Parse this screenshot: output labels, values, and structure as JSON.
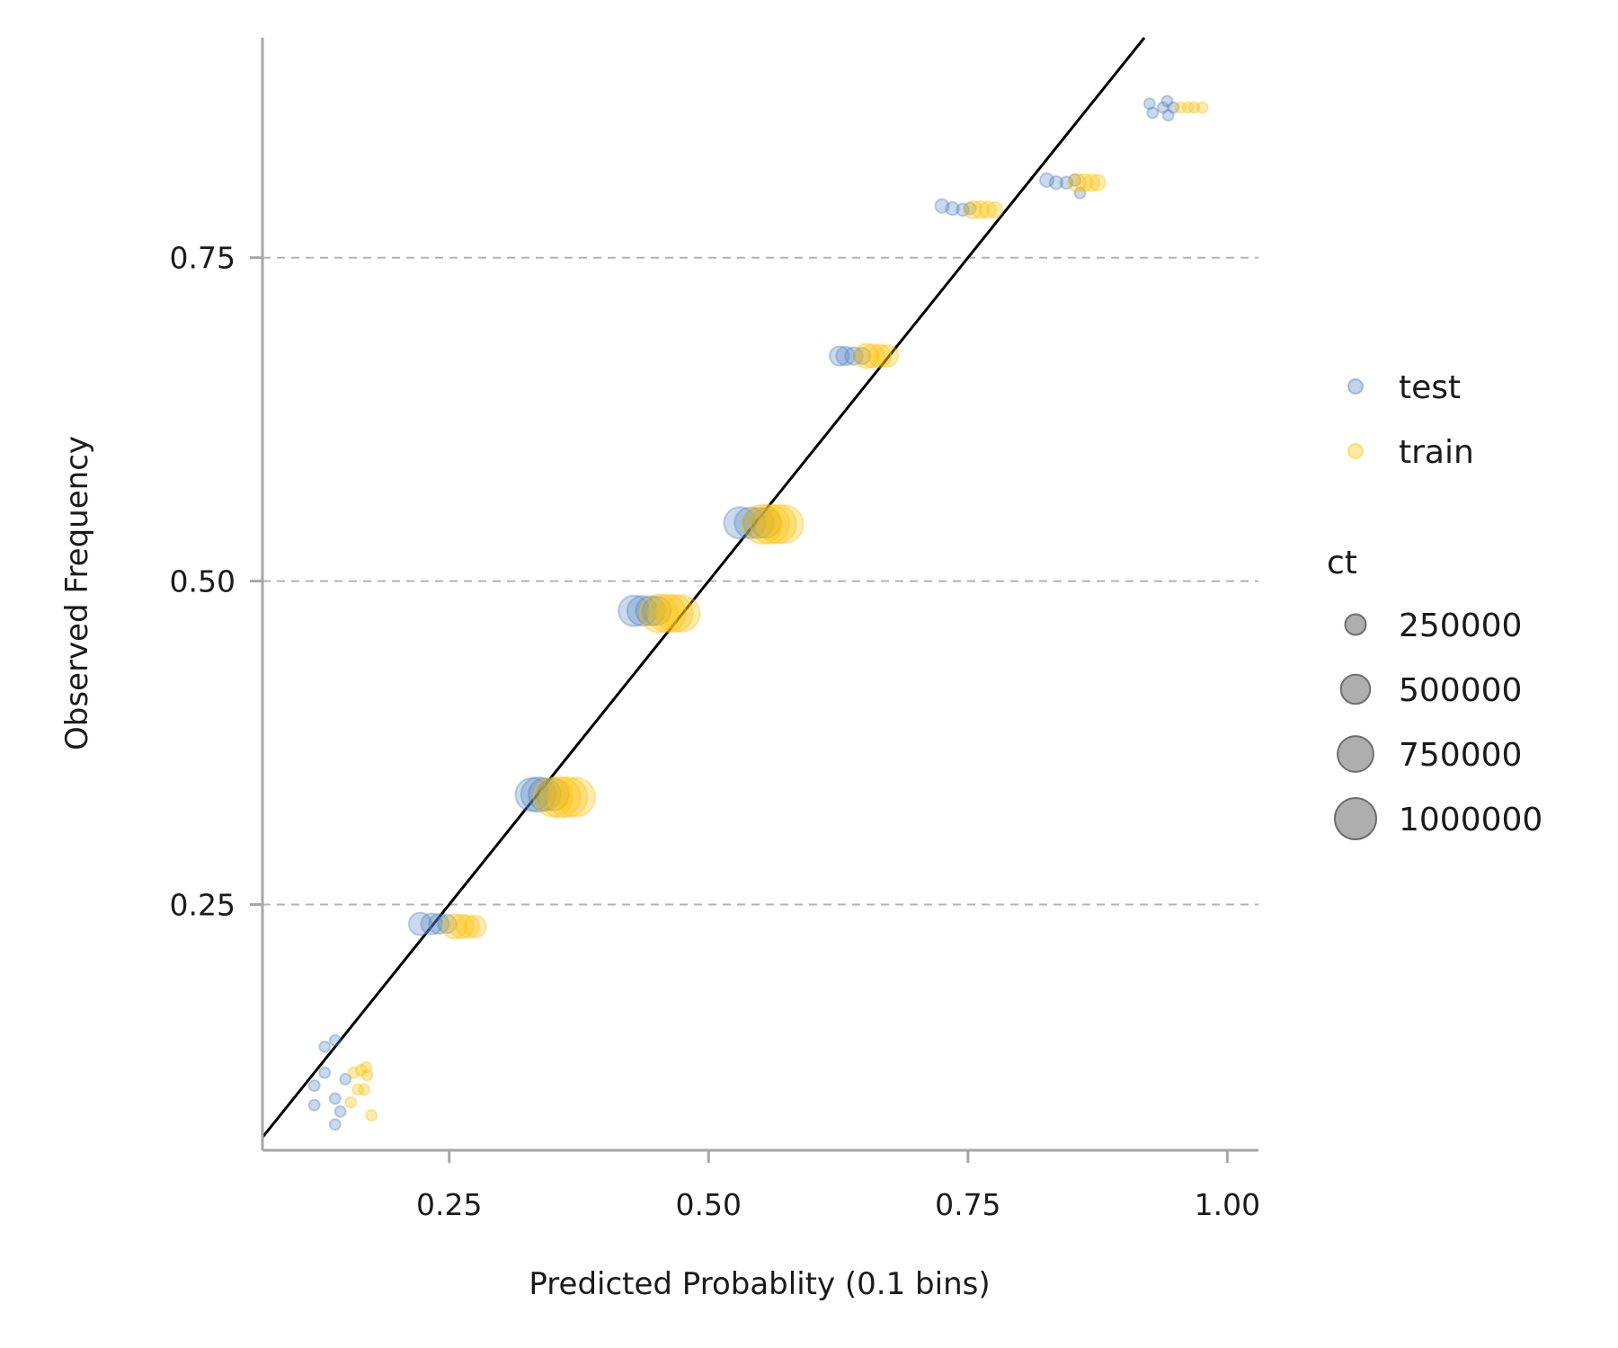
{
  "chart_data": {
    "type": "scatter",
    "xlabel": "Predicted Probablity (0.1 bins)",
    "ylabel": "Observed Frequency",
    "xlim": [
      0.07,
      1.03
    ],
    "ylim": [
      0.06,
      0.92
    ],
    "x_ticks": [
      {
        "value": 0.25,
        "label": "0.25"
      },
      {
        "value": 0.5,
        "label": "0.50"
      },
      {
        "value": 0.75,
        "label": "0.75"
      },
      {
        "value": 1.0,
        "label": "1.00"
      }
    ],
    "y_ticks": [
      {
        "value": 0.25,
        "label": "0.25"
      },
      {
        "value": 0.5,
        "label": "0.50"
      },
      {
        "value": 0.75,
        "label": "0.75"
      }
    ],
    "grid": "horizontal dashed",
    "reference_line": {
      "from": [
        0,
        0
      ],
      "to": [
        1,
        1
      ]
    },
    "series": [
      {
        "name": "test",
        "color": "#4f81bd",
        "points": [
          {
            "x": 0.13,
            "y": 0.14,
            "ct": 2000
          },
          {
            "x": 0.12,
            "y": 0.11,
            "ct": 1500
          },
          {
            "x": 0.13,
            "y": 0.12,
            "ct": 2500
          },
          {
            "x": 0.14,
            "y": 0.145,
            "ct": 1500
          },
          {
            "x": 0.12,
            "y": 0.095,
            "ct": 2000
          },
          {
            "x": 0.15,
            "y": 0.115,
            "ct": 1800
          },
          {
            "x": 0.14,
            "y": 0.1,
            "ct": 2200
          },
          {
            "x": 0.145,
            "y": 0.09,
            "ct": 1500
          },
          {
            "x": 0.14,
            "y": 0.08,
            "ct": 1500
          },
          {
            "x": 0.222,
            "y": 0.235,
            "ct": 300000
          },
          {
            "x": 0.233,
            "y": 0.235,
            "ct": 260000
          },
          {
            "x": 0.24,
            "y": 0.235,
            "ct": 230000
          },
          {
            "x": 0.248,
            "y": 0.235,
            "ct": 200000
          },
          {
            "x": 0.33,
            "y": 0.335,
            "ct": 650000
          },
          {
            "x": 0.336,
            "y": 0.335,
            "ct": 700000
          },
          {
            "x": 0.342,
            "y": 0.335,
            "ct": 620000
          },
          {
            "x": 0.35,
            "y": 0.335,
            "ct": 600000
          },
          {
            "x": 0.428,
            "y": 0.477,
            "ct": 550000
          },
          {
            "x": 0.436,
            "y": 0.477,
            "ct": 520000
          },
          {
            "x": 0.444,
            "y": 0.477,
            "ct": 500000
          },
          {
            "x": 0.45,
            "y": 0.477,
            "ct": 480000
          },
          {
            "x": 0.53,
            "y": 0.545,
            "ct": 580000
          },
          {
            "x": 0.54,
            "y": 0.545,
            "ct": 560000
          },
          {
            "x": 0.548,
            "y": 0.545,
            "ct": 540000
          },
          {
            "x": 0.555,
            "y": 0.545,
            "ct": 520000
          },
          {
            "x": 0.626,
            "y": 0.674,
            "ct": 220000
          },
          {
            "x": 0.632,
            "y": 0.674,
            "ct": 200000
          },
          {
            "x": 0.64,
            "y": 0.674,
            "ct": 180000
          },
          {
            "x": 0.648,
            "y": 0.674,
            "ct": 160000
          },
          {
            "x": 0.725,
            "y": 0.79,
            "ct": 110000
          },
          {
            "x": 0.735,
            "y": 0.788,
            "ct": 100000
          },
          {
            "x": 0.745,
            "y": 0.787,
            "ct": 90000
          },
          {
            "x": 0.752,
            "y": 0.788,
            "ct": 80000
          },
          {
            "x": 0.826,
            "y": 0.81,
            "ct": 110000
          },
          {
            "x": 0.835,
            "y": 0.808,
            "ct": 100000
          },
          {
            "x": 0.845,
            "y": 0.808,
            "ct": 90000
          },
          {
            "x": 0.853,
            "y": 0.81,
            "ct": 80000
          },
          {
            "x": 0.858,
            "y": 0.8,
            "ct": 70000
          },
          {
            "x": 0.925,
            "y": 0.869,
            "ct": 30000
          },
          {
            "x": 0.928,
            "y": 0.862,
            "ct": 25000
          },
          {
            "x": 0.938,
            "y": 0.866,
            "ct": 35000
          },
          {
            "x": 0.942,
            "y": 0.871,
            "ct": 28000
          },
          {
            "x": 0.943,
            "y": 0.86,
            "ct": 25000
          },
          {
            "x": 0.948,
            "y": 0.866,
            "ct": 40000
          }
        ]
      },
      {
        "name": "train",
        "color": "#ffc000",
        "points": [
          {
            "x": 0.158,
            "y": 0.12,
            "ct": 3000
          },
          {
            "x": 0.165,
            "y": 0.122,
            "ct": 2500
          },
          {
            "x": 0.171,
            "y": 0.118,
            "ct": 2000
          },
          {
            "x": 0.162,
            "y": 0.107,
            "ct": 2500
          },
          {
            "x": 0.168,
            "y": 0.107,
            "ct": 2000
          },
          {
            "x": 0.155,
            "y": 0.097,
            "ct": 2000
          },
          {
            "x": 0.175,
            "y": 0.087,
            "ct": 1800
          },
          {
            "x": 0.17,
            "y": 0.124,
            "ct": 1500
          },
          {
            "x": 0.255,
            "y": 0.233,
            "ct": 350000
          },
          {
            "x": 0.262,
            "y": 0.233,
            "ct": 330000
          },
          {
            "x": 0.268,
            "y": 0.233,
            "ct": 300000
          },
          {
            "x": 0.275,
            "y": 0.233,
            "ct": 280000
          },
          {
            "x": 0.35,
            "y": 0.333,
            "ct": 900000
          },
          {
            "x": 0.357,
            "y": 0.333,
            "ct": 950000
          },
          {
            "x": 0.364,
            "y": 0.333,
            "ct": 920000
          },
          {
            "x": 0.372,
            "y": 0.333,
            "ct": 880000
          },
          {
            "x": 0.452,
            "y": 0.475,
            "ct": 850000
          },
          {
            "x": 0.46,
            "y": 0.475,
            "ct": 830000
          },
          {
            "x": 0.467,
            "y": 0.475,
            "ct": 800000
          },
          {
            "x": 0.474,
            "y": 0.475,
            "ct": 780000
          },
          {
            "x": 0.552,
            "y": 0.544,
            "ct": 900000
          },
          {
            "x": 0.559,
            "y": 0.544,
            "ct": 880000
          },
          {
            "x": 0.566,
            "y": 0.544,
            "ct": 860000
          },
          {
            "x": 0.573,
            "y": 0.544,
            "ct": 840000
          },
          {
            "x": 0.652,
            "y": 0.674,
            "ct": 350000
          },
          {
            "x": 0.658,
            "y": 0.674,
            "ct": 320000
          },
          {
            "x": 0.665,
            "y": 0.674,
            "ct": 300000
          },
          {
            "x": 0.672,
            "y": 0.674,
            "ct": 280000
          },
          {
            "x": 0.755,
            "y": 0.787,
            "ct": 180000
          },
          {
            "x": 0.762,
            "y": 0.787,
            "ct": 170000
          },
          {
            "x": 0.769,
            "y": 0.787,
            "ct": 160000
          },
          {
            "x": 0.776,
            "y": 0.787,
            "ct": 140000
          },
          {
            "x": 0.855,
            "y": 0.808,
            "ct": 180000
          },
          {
            "x": 0.862,
            "y": 0.808,
            "ct": 170000
          },
          {
            "x": 0.869,
            "y": 0.808,
            "ct": 160000
          },
          {
            "x": 0.875,
            "y": 0.808,
            "ct": 140000
          },
          {
            "x": 0.955,
            "y": 0.866,
            "ct": 60000
          },
          {
            "x": 0.962,
            "y": 0.866,
            "ct": 55000
          },
          {
            "x": 0.968,
            "y": 0.866,
            "ct": 50000
          },
          {
            "x": 0.976,
            "y": 0.866,
            "ct": 45000
          }
        ]
      }
    ],
    "legend": {
      "placement": "right",
      "color_entries": [
        {
          "label": "test",
          "color": "#4f81bd"
        },
        {
          "label": "train",
          "color": "#ffc000"
        }
      ],
      "size_title": "ct",
      "size_entries": [
        {
          "label": "250000",
          "value": 250000
        },
        {
          "label": "500000",
          "value": 500000
        },
        {
          "label": "750000",
          "value": 750000
        },
        {
          "label": "1000000",
          "value": 1000000
        }
      ]
    }
  }
}
